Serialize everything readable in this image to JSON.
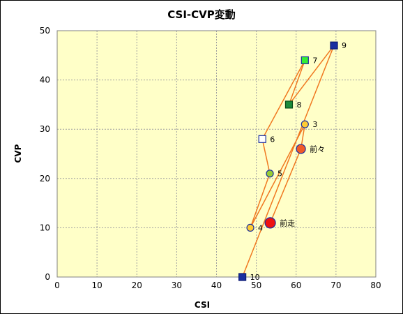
{
  "chart_data": {
    "type": "scatter",
    "title": "CSI-CVP変動",
    "xlabel": "CSI",
    "ylabel": "CVP",
    "xlim": [
      0,
      80
    ],
    "ylim": [
      0,
      50
    ],
    "x_ticks": [
      "0",
      "10",
      "20",
      "30",
      "40",
      "50",
      "60",
      "70",
      "80"
    ],
    "y_ticks": [
      "0",
      "10",
      "20",
      "30",
      "40",
      "50"
    ],
    "grid": true,
    "legend": "none",
    "colors": {
      "plot_bg": "#ffffc8",
      "line": "#f07820",
      "grid": "#a0a0a0"
    },
    "path_order": [
      "10",
      "9",
      "8",
      "7",
      "6",
      "5",
      "4",
      "3",
      "前々",
      "前走"
    ],
    "points": [
      {
        "label": "10",
        "x": 46.5,
        "y": 0,
        "marker": "square",
        "fill": "#1a2fa0",
        "stroke": "#0a1870",
        "size": 10
      },
      {
        "label": "9",
        "x": 69.5,
        "y": 47,
        "marker": "square",
        "fill": "#1a2fa0",
        "stroke": "#0a1870",
        "size": 10
      },
      {
        "label": "8",
        "x": 58.2,
        "y": 35,
        "marker": "square",
        "fill": "#1a8a3a",
        "stroke": "#0a4a1a",
        "size": 10
      },
      {
        "label": "7",
        "x": 62.2,
        "y": 44,
        "marker": "square",
        "fill": "#33ee33",
        "stroke": "#1a2fa0",
        "size": 10
      },
      {
        "label": "6",
        "x": 51.5,
        "y": 28,
        "marker": "square",
        "fill": "#ffffff",
        "stroke": "#1a2fa0",
        "size": 10
      },
      {
        "label": "5",
        "x": 53.4,
        "y": 21,
        "marker": "circle",
        "fill": "#99cc33",
        "stroke": "#1a2fa0",
        "size": 10
      },
      {
        "label": "4",
        "x": 48.5,
        "y": 10,
        "marker": "circle",
        "fill": "#ffcc33",
        "stroke": "#1a2fa0",
        "size": 10
      },
      {
        "label": "3",
        "x": 62.2,
        "y": 31,
        "marker": "circle",
        "fill": "#ffcc33",
        "stroke": "#1a2fa0",
        "size": 10
      },
      {
        "label": "前々",
        "x": 61.2,
        "y": 26,
        "marker": "circle",
        "fill": "#f05a28",
        "stroke": "#1a2fa0",
        "size": 13
      },
      {
        "label": "前走",
        "x": 53.5,
        "y": 11,
        "marker": "circle",
        "fill": "#ee1111",
        "stroke": "#1a2fa0",
        "size": 15
      }
    ]
  }
}
